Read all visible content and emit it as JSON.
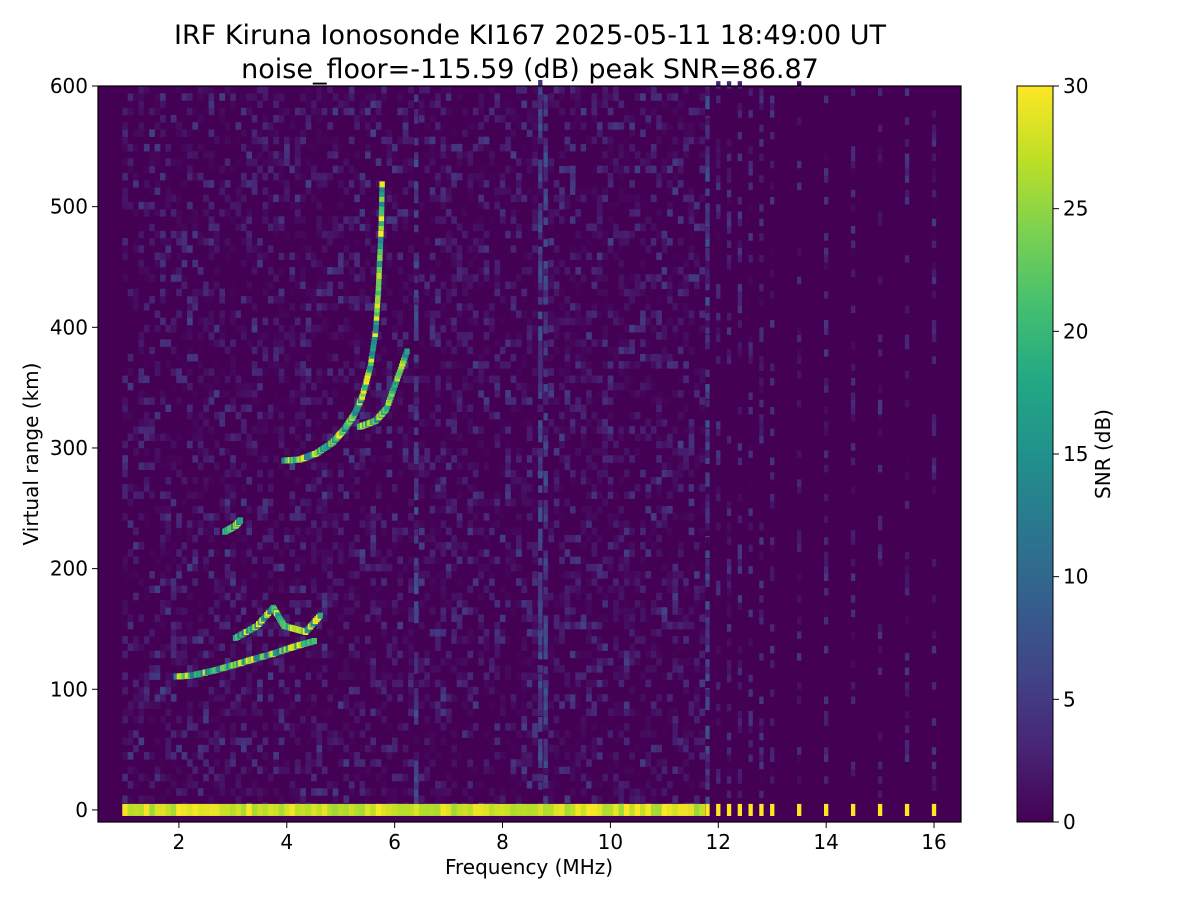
{
  "chart_data": {
    "type": "heatmap",
    "title_line1": "IRF Kiruna Ionosonde KI167 2025-05-11 18:49:00  UT",
    "title_line2": "noise_floor=-115.59 (dB) peak SNR=86.87",
    "xlabel": "Frequency (MHz)",
    "ylabel": "Virtual range (km)",
    "colorbar_label": "SNR (dB)",
    "colormap": "viridis",
    "xlim": [
      0.5,
      16.5
    ],
    "ylim": [
      -10,
      600
    ],
    "clim": [
      0,
      30
    ],
    "xticks": [
      2,
      4,
      6,
      8,
      10,
      12,
      14,
      16
    ],
    "yticks": [
      0,
      100,
      200,
      300,
      400,
      500,
      600
    ],
    "cticks": [
      0,
      5,
      10,
      15,
      20,
      25,
      30
    ],
    "sweep_start_mhz": 0.95,
    "dense_sweep_end_mhz": 11.7,
    "sparse_frequencies_mhz": [
      11.8,
      12.0,
      12.2,
      12.4,
      12.6,
      12.8,
      13.0,
      13.5,
      14.0,
      14.5,
      15.0,
      15.5,
      16.0
    ],
    "ground_band_km": [
      -5,
      5
    ],
    "traces": [
      {
        "name": "E-layer trace",
        "points": [
          [
            1.9,
            108
          ],
          [
            2.2,
            109
          ],
          [
            2.6,
            113
          ],
          [
            3.0,
            118
          ],
          [
            3.3,
            122
          ],
          [
            3.7,
            127
          ],
          [
            4.1,
            133
          ],
          [
            4.5,
            138
          ]
        ]
      },
      {
        "name": "Es clutter",
        "points": [
          [
            3.0,
            140
          ],
          [
            3.4,
            150
          ],
          [
            3.7,
            165
          ],
          [
            3.9,
            150
          ],
          [
            4.3,
            145
          ],
          [
            4.6,
            160
          ]
        ]
      },
      {
        "name": "F-layer O trace",
        "points": [
          [
            3.9,
            287
          ],
          [
            4.2,
            288
          ],
          [
            4.5,
            293
          ],
          [
            4.8,
            302
          ],
          [
            5.0,
            312
          ],
          [
            5.2,
            325
          ],
          [
            5.35,
            340
          ],
          [
            5.5,
            365
          ],
          [
            5.6,
            395
          ],
          [
            5.65,
            430
          ],
          [
            5.7,
            480
          ],
          [
            5.72,
            520
          ]
        ]
      },
      {
        "name": "F-layer X trace",
        "points": [
          [
            5.3,
            315
          ],
          [
            5.6,
            320
          ],
          [
            5.8,
            330
          ],
          [
            6.0,
            355
          ],
          [
            6.2,
            380
          ]
        ]
      },
      {
        "name": "faint echo",
        "points": [
          [
            2.8,
            228
          ],
          [
            3.0,
            233
          ],
          [
            3.1,
            238
          ]
        ]
      }
    ],
    "interference_lines_mhz": [
      6.4,
      8.7,
      8.8,
      11.8
    ]
  }
}
